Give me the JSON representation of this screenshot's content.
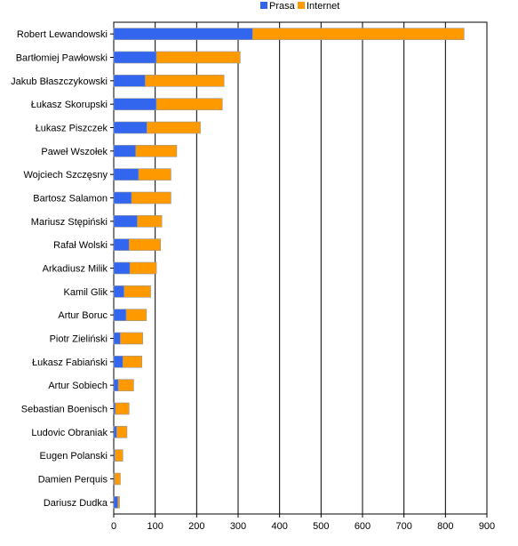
{
  "chart_data": {
    "type": "bar",
    "orientation": "horizontal",
    "stacked": true,
    "title": "",
    "xlabel": "",
    "ylabel": "",
    "xlim": [
      0,
      900
    ],
    "x_ticks": [
      "0",
      "100",
      "200",
      "300",
      "400",
      "500",
      "600",
      "700",
      "800",
      "900"
    ],
    "grid": true,
    "legend_position": "top-right",
    "categories": [
      "Robert Lewandowski",
      "Bartłomiej Pawłowski",
      "Jakub Błaszczykowski",
      "Łukasz Skorupski",
      "Łukasz Piszczek",
      "Paweł Wszołek",
      "Wojciech Szczęsny",
      "Bartosz Salamon",
      "Mariusz Stępiński",
      "Rafał Wolski",
      "Arkadiusz Milik",
      "Kamil Glik",
      "Artur Boruc",
      "Piotr Zieliński",
      "Łukasz Fabiański",
      "Artur Sobiech",
      "Sebastian Boenisch",
      "Ludovic Obraniak",
      "Eugen Polanski",
      "Damien Perquis",
      "Dariusz Dudka"
    ],
    "series": [
      {
        "name": "Prasa",
        "color": "#3366ee",
        "values": [
          335,
          103,
          76,
          103,
          80,
          53,
          60,
          43,
          57,
          37,
          39,
          25,
          30,
          16,
          22,
          11,
          4,
          7,
          3,
          2,
          10
        ]
      },
      {
        "name": "Internet",
        "color": "#ff9900",
        "values": [
          510,
          202,
          190,
          159,
          129,
          99,
          78,
          95,
          59,
          76,
          64,
          64,
          49,
          54,
          46,
          37,
          33,
          25,
          19,
          14,
          4
        ]
      }
    ]
  }
}
